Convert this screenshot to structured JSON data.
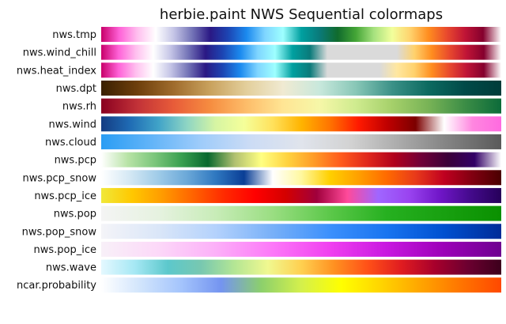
{
  "chart_data": {
    "type": "colormap-swatches",
    "title": "herbie.paint NWS Sequential colormaps",
    "colormaps": [
      {
        "name": "nws.tmp",
        "stops": [
          "#c8006a",
          "#ff62d8",
          "#ffc0ef",
          "#ffffff",
          "#c4c4e6",
          "#7474b7",
          "#2a1884",
          "#1c46b4",
          "#1b8aef",
          "#7fd5ff",
          "#9effff",
          "#00a0a0",
          "#0a7a7a",
          "#106b2d",
          "#44a536",
          "#a7e27f",
          "#f2ff9c",
          "#ffd26d",
          "#ff8d1f",
          "#e94a2d",
          "#c01436",
          "#84002d",
          "#ffffff"
        ]
      },
      {
        "name": "nws.wind_chill",
        "stops": [
          "#c8006a",
          "#ff62d8",
          "#ffc0ef",
          "#ffffff",
          "#c4c4e6",
          "#7474b7",
          "#2a1884",
          "#1c46b4",
          "#1b8aef",
          "#7fd5ff",
          "#9effff",
          "#00a0a0",
          "#0a7a7a",
          "#dadada",
          "#dadada",
          "#dadada",
          "#dadada",
          "#dadada",
          "#ffd26d",
          "#ff8d1f",
          "#e94a2d",
          "#c01436",
          "#84002d",
          "#ffffff"
        ]
      },
      {
        "name": "nws.heat_index",
        "stops": [
          "#c8006a",
          "#ff62d8",
          "#ffc0ef",
          "#ffffff",
          "#c4c4e6",
          "#7474b7",
          "#2a1884",
          "#1c46b4",
          "#1b8aef",
          "#7fd5ff",
          "#9effff",
          "#00a0a0",
          "#0a7a7a",
          "#dadada",
          "#dadada",
          "#dadada",
          "#dadada",
          "#ffe7a0",
          "#ffd26d",
          "#ff8d1f",
          "#e94a2d",
          "#c01436",
          "#84002d",
          "#ffffff"
        ]
      },
      {
        "name": "nws.dpt",
        "stops": [
          "#3a2000",
          "#6e3f0c",
          "#a06c2d",
          "#c9a25e",
          "#e3cf9c",
          "#f0ead2",
          "#c8e8dc",
          "#88c7b7",
          "#3b9187",
          "#0c6a60",
          "#004a48",
          "#003c3a"
        ]
      },
      {
        "name": "nws.rh",
        "stops": [
          "#8a0020",
          "#c23238",
          "#e85c39",
          "#f68d40",
          "#fdbd6a",
          "#ffe594",
          "#f6f7a8",
          "#cfeb8f",
          "#a5d06a",
          "#78b356",
          "#3c8d46",
          "#0c6b3a"
        ]
      },
      {
        "name": "nws.wind",
        "stops": [
          "#143c82",
          "#1f6bb4",
          "#40a3c8",
          "#8ed5c4",
          "#d6f5a3",
          "#f5ff9a",
          "#ffe15c",
          "#ffb400",
          "#ff7400",
          "#ff1a00",
          "#c00000",
          "#7c0000",
          "#ffffff",
          "#ff86e0",
          "#ff6ae0"
        ]
      },
      {
        "name": "nws.cloud",
        "stops": [
          "#2a9df4",
          "#62b4f8",
          "#9fccfa",
          "#ccdcf5",
          "#e0e4ec",
          "#d2d2d2",
          "#a9a9a9",
          "#808080",
          "#5a5a5a"
        ]
      },
      {
        "name": "nws.pcp",
        "stops": [
          "#ffffff",
          "#b8e3a6",
          "#7bc67b",
          "#39a050",
          "#08682e",
          "#b0c070",
          "#ffff82",
          "#ffd23f",
          "#ff9a26",
          "#ff5a1c",
          "#e0271c",
          "#b0001c",
          "#700038",
          "#3a0038",
          "#330066",
          "#ffffff"
        ]
      },
      {
        "name": "nws.pcp_snow",
        "stops": [
          "#ffffff",
          "#d4e8f4",
          "#9fcbe8",
          "#6ba8d8",
          "#2f78c0",
          "#0a3e96",
          "#ffffff",
          "#fff8a0",
          "#ffd000",
          "#ffa000",
          "#ff6a00",
          "#e83a1a",
          "#c00020",
          "#800010",
          "#4a0000"
        ]
      },
      {
        "name": "nws.pcp_ice",
        "stops": [
          "#f0e839",
          "#ffc800",
          "#ff9a00",
          "#ff6200",
          "#ff2a00",
          "#ff0000",
          "#d40000",
          "#a0003c",
          "#ff4a9a",
          "#a066ff",
          "#9a44f0",
          "#7016c8",
          "#440a8c",
          "#26005a"
        ]
      },
      {
        "name": "nws.pop",
        "stops": [
          "#f4f4f4",
          "#e6f2e0",
          "#c8ecb8",
          "#9ade82",
          "#5cc84a",
          "#26b020",
          "#18a010",
          "#0a9000"
        ]
      },
      {
        "name": "nws.pop_snow",
        "stops": [
          "#f4f4f8",
          "#dae6f8",
          "#b4d2fc",
          "#78b0f8",
          "#3c90fc",
          "#1874f0",
          "#0050d0",
          "#002c98"
        ]
      },
      {
        "name": "nws.pop_ice",
        "stops": [
          "#f8f0f8",
          "#fcd8f8",
          "#fcb0f8",
          "#fc78f8",
          "#f040f0",
          "#c818e0",
          "#9c00b8",
          "#6e0090"
        ]
      },
      {
        "name": "nws.wave",
        "stops": [
          "#e4f8ff",
          "#a6e8f4",
          "#5cc8cc",
          "#78c8b0",
          "#b4e694",
          "#f0f890",
          "#ffd050",
          "#ff9020",
          "#ff5018",
          "#e01c20",
          "#a8002c",
          "#6c0030",
          "#3c001c"
        ]
      },
      {
        "name": "ncar.probability",
        "stops": [
          "#ffffff",
          "#d0e4fc",
          "#a4c4fc",
          "#7494f0",
          "#8cd06c",
          "#d4f04c",
          "#ffff00",
          "#ffd400",
          "#ffa400",
          "#ff7400",
          "#ff4800"
        ]
      }
    ]
  }
}
